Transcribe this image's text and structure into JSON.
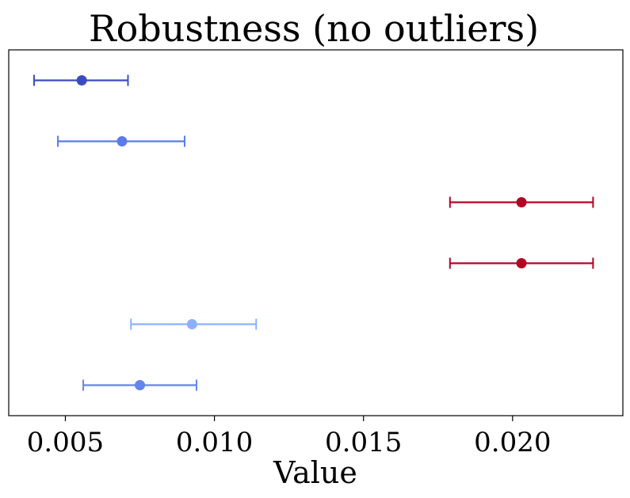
{
  "chart_data": {
    "type": "scatter",
    "title": "Robustness (no outliers)",
    "xlabel": "Value",
    "ylabel": "",
    "xlim": [
      0.0031,
      0.0237
    ],
    "ylim": [
      -0.5,
      5.5
    ],
    "xticks": [
      0.005,
      0.01,
      0.015,
      0.02
    ],
    "xtick_labels": [
      "0.005",
      "0.010",
      "0.015",
      "0.020"
    ],
    "yticks_visible": false,
    "grid": false,
    "points": [
      {
        "y": 5,
        "x": 0.00555,
        "err_low": 0.00395,
        "err_high": 0.0071,
        "color": "#3b4cc0"
      },
      {
        "y": 4,
        "x": 0.0069,
        "err_low": 0.00475,
        "err_high": 0.009,
        "color": "#5b7be6"
      },
      {
        "y": 3,
        "x": 0.0203,
        "err_low": 0.0179,
        "err_high": 0.0227,
        "color": "#b40426"
      },
      {
        "y": 2,
        "x": 0.0203,
        "err_low": 0.0179,
        "err_high": 0.0227,
        "color": "#b40426"
      },
      {
        "y": 1,
        "x": 0.00925,
        "err_low": 0.0072,
        "err_high": 0.0114,
        "color": "#8db0fe"
      },
      {
        "y": 0,
        "x": 0.0075,
        "err_low": 0.0056,
        "err_high": 0.0094,
        "color": "#6485ec"
      }
    ]
  }
}
